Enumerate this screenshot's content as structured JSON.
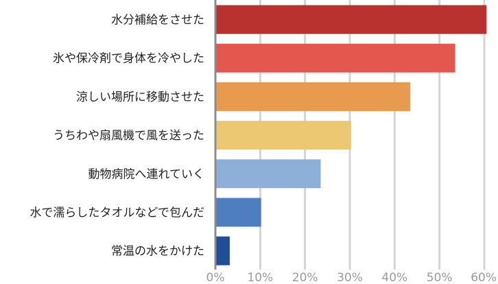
{
  "chart_data": {
    "type": "bar",
    "orientation": "horizontal",
    "categories": [
      "水分補給をさせた",
      "氷や保冷剤で身体を冷やした",
      "涼しい場所に移動させた",
      "うちわや扇風機で風を送った",
      "動物病院へ連れていく",
      "水で濡らしたタオルなどで包んだ",
      "常温の水をかけた"
    ],
    "values": [
      60.5,
      53.5,
      43.5,
      30.3,
      23.5,
      10.2,
      3.2
    ],
    "unit": "%",
    "xlim": [
      0,
      60
    ],
    "xticks": [
      "0%",
      "10%",
      "20%",
      "30%",
      "40%",
      "50%",
      "60%"
    ],
    "grid": true,
    "legend": "none",
    "colors": [
      "#b93230",
      "#e3574e",
      "#e89a4e",
      "#ecc872",
      "#8eb0d8",
      "#4e7ebf",
      "#214f97"
    ],
    "grid_color": "#d4d4d4",
    "axis_color": "#8c8c8c"
  }
}
